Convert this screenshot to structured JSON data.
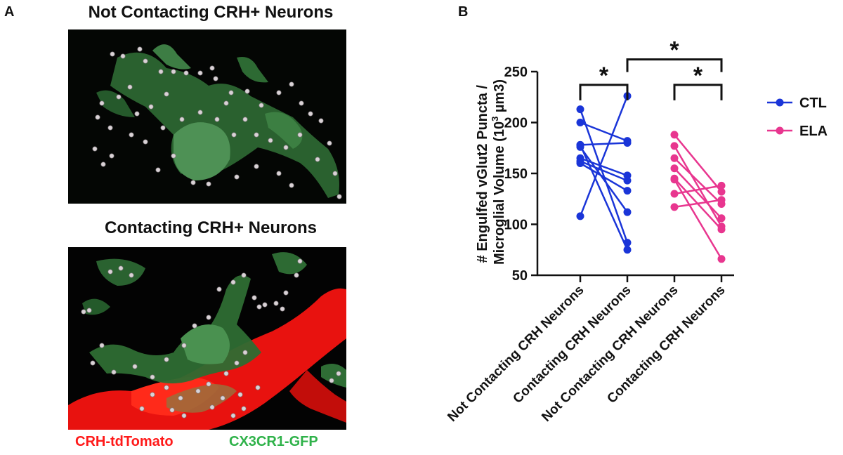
{
  "panel_a": {
    "letter": "A",
    "top_title": "Not Contacting CRH+ Neurons",
    "bottom_title": "Contacting CRH+ Neurons",
    "legend_red": "CRH-tdTomato",
    "legend_green": "CX3CR1-GFP",
    "colors": {
      "red": "#ff1a1a",
      "green": "#2fb24a",
      "background": "#000000",
      "puncta": "#d9d2d6"
    }
  },
  "panel_b": {
    "letter": "B"
  },
  "chart_data": {
    "type": "line",
    "ylabel_line1": "# Engulfed vGlut2 Puncta /",
    "ylabel_line2_prefix": "Microglial Volume (10",
    "ylabel_sup": "3",
    "ylabel_line2_suffix": " µm3)",
    "ylim": [
      50,
      250
    ],
    "yticks": [
      50,
      100,
      150,
      200,
      250
    ],
    "categories": [
      "Not Contacting CRH Neurons",
      "Contacting CRH Neurons",
      "Not Contacting CRH Neurons",
      "Contacting CRH Neurons"
    ],
    "series": [
      {
        "name": "CTL",
        "color": "#1a35d8",
        "category_index": [
          0,
          1
        ],
        "pairs": [
          [
            213,
            82
          ],
          [
            200,
            182
          ],
          [
            178,
            180
          ],
          [
            176,
            112
          ],
          [
            165,
            148
          ],
          [
            162,
            143
          ],
          [
            160,
            133
          ],
          [
            108,
            226
          ],
          [
            178,
            75
          ]
        ]
      },
      {
        "name": "ELA",
        "color": "#e8368f",
        "category_index": [
          2,
          3
        ],
        "pairs": [
          [
            188,
            132
          ],
          [
            177,
            98
          ],
          [
            165,
            120
          ],
          [
            155,
            106
          ],
          [
            145,
            95
          ],
          [
            130,
            138
          ],
          [
            117,
            124
          ],
          [
            144,
            66
          ]
        ]
      }
    ],
    "significance": [
      {
        "from": 0,
        "to": 1,
        "label": "*",
        "level": 237
      },
      {
        "from": 2,
        "to": 3,
        "label": "*",
        "level": 237
      },
      {
        "from": 1,
        "to": 3,
        "label": "*",
        "level": 262
      }
    ],
    "legend": {
      "position": "right"
    }
  }
}
